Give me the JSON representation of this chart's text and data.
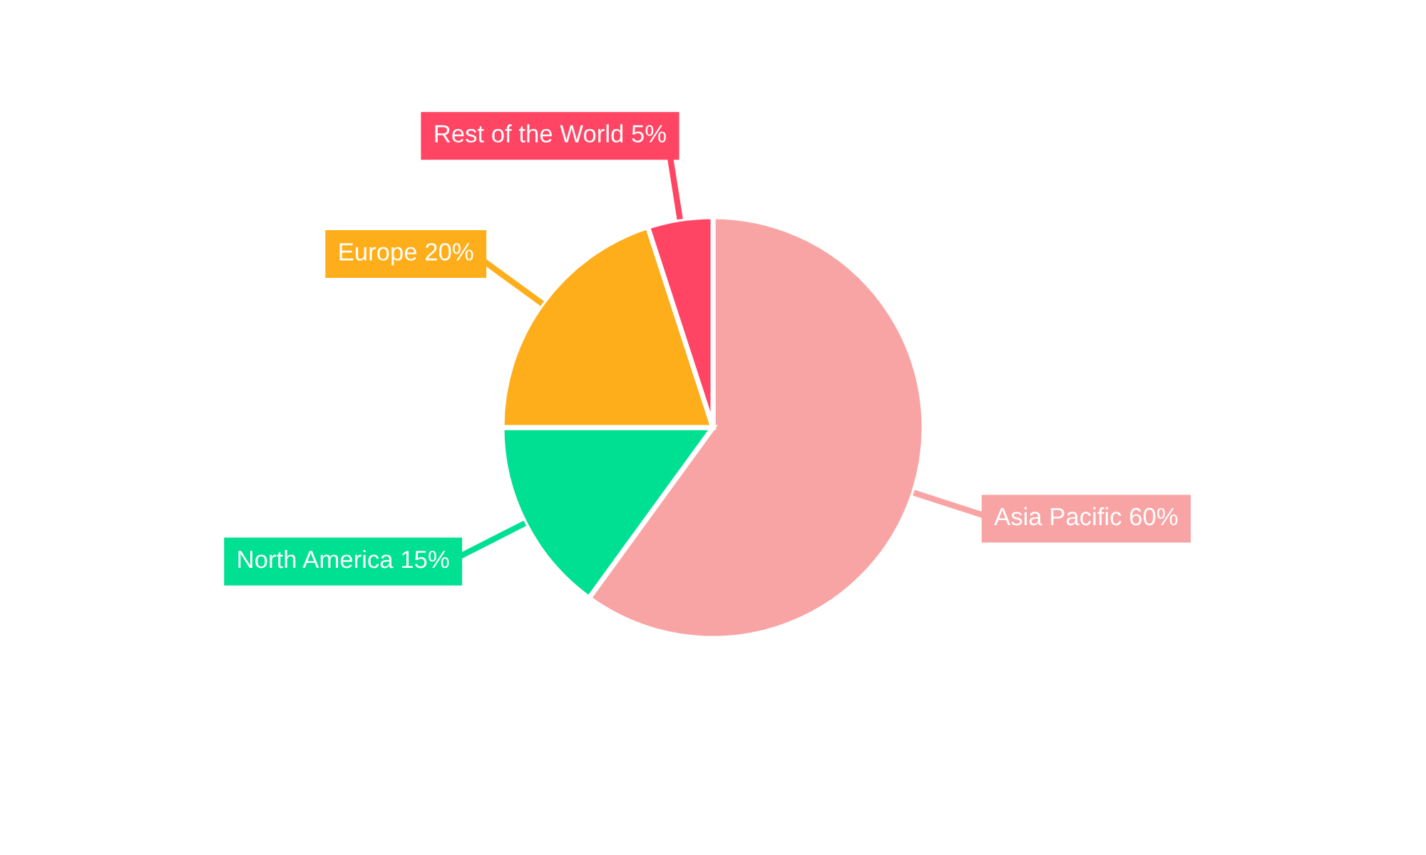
{
  "chart_data": {
    "type": "pie",
    "categories": [
      "Asia Pacific",
      "North America",
      "Europe",
      "Rest of the World"
    ],
    "values": [
      60,
      15,
      20,
      5
    ],
    "colors": [
      "#f9a4a4",
      "#00e093",
      "#feae1b",
      "#ff4563"
    ],
    "value_labels": [
      "60%",
      "15%",
      "20%",
      "5%"
    ]
  }
}
